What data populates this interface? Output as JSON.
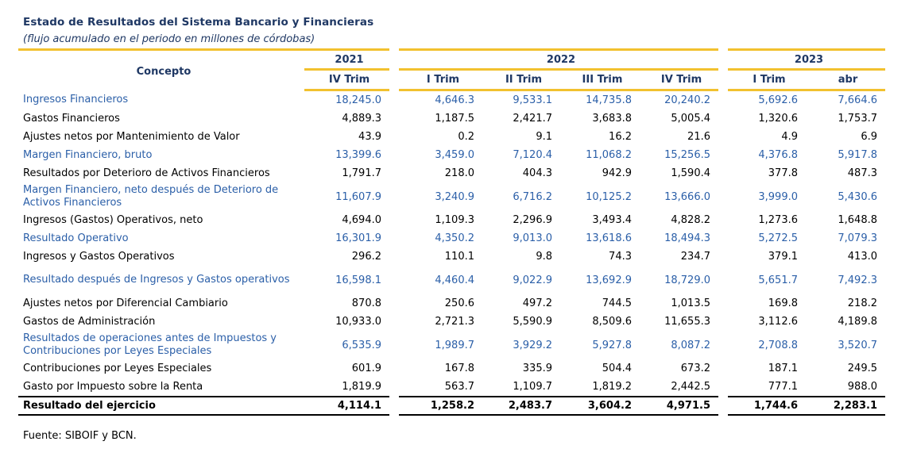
{
  "title": "Estado de Resultados del Sistema Bancario y Financieras",
  "subtitle": "(flujo acumulado en el periodo en millones de córdobas)",
  "header": {
    "concept": "Concepto",
    "years": [
      "2021",
      "2022",
      "2023"
    ],
    "periods": [
      "IV Trim",
      "I Trim",
      "II Trim",
      "III Trim",
      "IV Trim",
      "I Trim",
      "abr"
    ]
  },
  "rows": [
    {
      "label": "Ingresos Financieros",
      "values": [
        "18,245.0",
        "4,646.3",
        "9,533.1",
        "14,735.8",
        "20,240.2",
        "5,692.6",
        "7,664.6"
      ]
    },
    {
      "label": "Gastos Financieros",
      "values": [
        "4,889.3",
        "1,187.5",
        "2,421.7",
        "3,683.8",
        "5,005.4",
        "1,320.6",
        "1,753.7"
      ]
    },
    {
      "label": "Ajustes netos por Mantenimiento de Valor",
      "values": [
        "43.9",
        "0.2",
        "9.1",
        "16.2",
        "21.6",
        "4.9",
        "6.9"
      ]
    },
    {
      "label": "Margen Financiero, bruto",
      "values": [
        "13,399.6",
        "3,459.0",
        "7,120.4",
        "11,068.2",
        "15,256.5",
        "4,376.8",
        "5,917.8"
      ]
    },
    {
      "label": "Resultados por Deterioro de Activos Financieros",
      "values": [
        "1,791.7",
        "218.0",
        "404.3",
        "942.9",
        "1,590.4",
        "377.8",
        "487.3"
      ]
    },
    {
      "label": "Margen Financiero, neto después de Deterioro de Activos Financieros",
      "values": [
        "11,607.9",
        "3,240.9",
        "6,716.2",
        "10,125.2",
        "13,666.0",
        "3,999.0",
        "5,430.6"
      ]
    },
    {
      "label": "Ingresos (Gastos) Operativos, neto",
      "values": [
        "4,694.0",
        "1,109.3",
        "2,296.9",
        "3,493.4",
        "4,828.2",
        "1,273.6",
        "1,648.8"
      ]
    },
    {
      "label": "Resultado Operativo",
      "values": [
        "16,301.9",
        "4,350.2",
        "9,013.0",
        "13,618.6",
        "18,494.3",
        "5,272.5",
        "7,079.3"
      ]
    },
    {
      "label": "Ingresos y Gastos Operativos",
      "values": [
        "296.2",
        "110.1",
        "9.8",
        "74.3",
        "234.7",
        "379.1",
        "413.0"
      ]
    },
    {
      "label": "Resultado después de Ingresos y Gastos operativos",
      "values": [
        "16,598.1",
        "4,460.4",
        "9,022.9",
        "13,692.9",
        "18,729.0",
        "5,651.7",
        "7,492.3"
      ]
    },
    {
      "label": "Ajustes netos por Diferencial Cambiario",
      "values": [
        "870.8",
        "250.6",
        "497.2",
        "744.5",
        "1,013.5",
        "169.8",
        "218.2"
      ]
    },
    {
      "label": "Gastos de Administración",
      "values": [
        "10,933.0",
        "2,721.3",
        "5,590.9",
        "8,509.6",
        "11,655.3",
        "3,112.6",
        "4,189.8"
      ]
    },
    {
      "label": "Resultados de operaciones antes de Impuestos y Contribuciones por Leyes Especiales",
      "values": [
        "6,535.9",
        "1,989.7",
        "3,929.2",
        "5,927.8",
        "8,087.2",
        "2,708.8",
        "3,520.7"
      ]
    },
    {
      "label": "Contribuciones por Leyes Especiales",
      "values": [
        "601.9",
        "167.8",
        "335.9",
        "504.4",
        "673.2",
        "187.1",
        "249.5"
      ]
    },
    {
      "label": "Gasto por Impuesto sobre la Renta",
      "values": [
        "1,819.9",
        "563.7",
        "1,109.7",
        "1,819.2",
        "2,442.5",
        "777.1",
        "988.0"
      ]
    }
  ],
  "total": {
    "label": "Resultado del ejercicio",
    "values": [
      "4,114.1",
      "1,258.2",
      "2,483.7",
      "3,604.2",
      "4,971.5",
      "1,744.6",
      "2,283.1"
    ]
  },
  "source": "Fuente: SIBOIF y BCN.",
  "colors": {
    "title": "#1F3864",
    "highlight": "#2B5FA8",
    "rule": "#F2C12E"
  }
}
